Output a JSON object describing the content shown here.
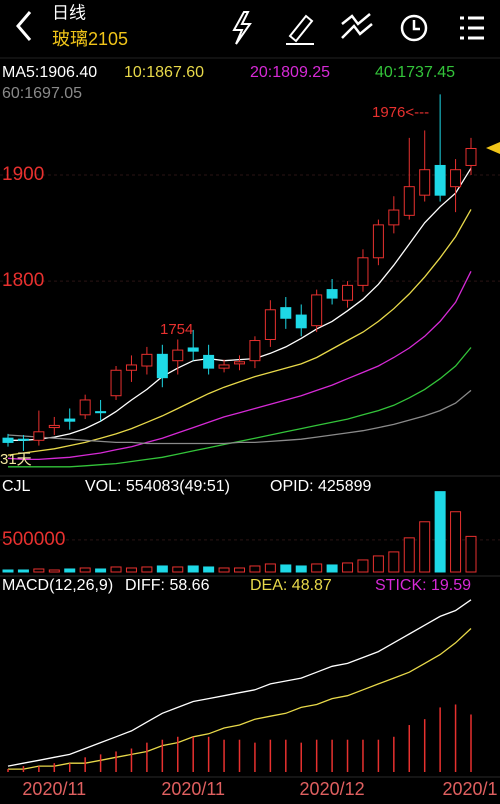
{
  "header": {
    "title": "日线",
    "symbol": "玻璃2105"
  },
  "chart_data": [
    {
      "type": "candlestick",
      "ylim": [
        1622,
        1982
      ],
      "yticks": [
        1800,
        1900
      ],
      "grid": true,
      "up_color": "#e8312f",
      "down_color": "#1ed9e6",
      "candles": {
        "open": [
          1652,
          1651,
          1650,
          1662,
          1670,
          1674,
          1677,
          1692,
          1716,
          1720,
          1731,
          1725,
          1737,
          1730,
          1718,
          1722,
          1725,
          1745,
          1775,
          1768,
          1758,
          1792,
          1782,
          1796,
          1822,
          1853,
          1862,
          1881,
          1909,
          1889,
          1909
        ],
        "high": [
          1656,
          1655,
          1678,
          1672,
          1680,
          1693,
          1688,
          1720,
          1730,
          1738,
          1740,
          1745,
          1754,
          1740,
          1726,
          1730,
          1748,
          1782,
          1785,
          1778,
          1792,
          1802,
          1800,
          1830,
          1858,
          1880,
          1935,
          1942,
          1976,
          1915,
          1935
        ],
        "low": [
          1644,
          1640,
          1645,
          1655,
          1660,
          1670,
          1668,
          1688,
          1705,
          1712,
          1700,
          1712,
          1725,
          1712,
          1714,
          1716,
          1718,
          1738,
          1755,
          1748,
          1752,
          1778,
          1775,
          1790,
          1815,
          1845,
          1858,
          1875,
          1875,
          1865,
          1900
        ],
        "close": [
          1648,
          1650,
          1658,
          1664,
          1668,
          1688,
          1676,
          1716,
          1721,
          1731,
          1709,
          1735,
          1734,
          1718,
          1721,
          1724,
          1744,
          1773,
          1765,
          1756,
          1787,
          1784,
          1796,
          1822,
          1853,
          1867,
          1889,
          1905,
          1881,
          1905,
          1925
        ]
      },
      "series": [
        {
          "name": "MA5:1906.40",
          "color": "#ffffff",
          "values": [
            1650,
            1650,
            1651,
            1653,
            1656,
            1661,
            1668,
            1677,
            1688,
            1698,
            1710,
            1718,
            1725,
            1727,
            1725,
            1726,
            1727,
            1732,
            1738,
            1746,
            1755,
            1762,
            1772,
            1783,
            1797,
            1815,
            1835,
            1855,
            1870,
            1883,
            1906.4
          ]
        },
        {
          "name": "10:1867.60",
          "color": "#e8d94a",
          "values": [
            1636,
            1638,
            1640,
            1642,
            1645,
            1648,
            1652,
            1656,
            1661,
            1667,
            1673,
            1680,
            1687,
            1694,
            1700,
            1705,
            1710,
            1714,
            1718,
            1722,
            1728,
            1736,
            1744,
            1752,
            1762,
            1774,
            1788,
            1804,
            1822,
            1842,
            1867.6
          ]
        },
        {
          "name": "20:1809.25",
          "color": "#d62ad6",
          "values": [
            1633,
            1632,
            1632,
            1633,
            1634,
            1636,
            1638,
            1641,
            1644,
            1648,
            1652,
            1657,
            1662,
            1667,
            1672,
            1676,
            1680,
            1684,
            1688,
            1692,
            1697,
            1702,
            1708,
            1714,
            1720,
            1728,
            1737,
            1748,
            1762,
            1780,
            1809.25
          ]
        },
        {
          "name": "40:1737.45",
          "color": "#33c43a",
          "values": [
            1625,
            1625,
            1625,
            1625,
            1625,
            1626,
            1627,
            1628,
            1630,
            1632,
            1634,
            1637,
            1640,
            1643,
            1646,
            1649,
            1652,
            1655,
            1658,
            1661,
            1664,
            1667,
            1670,
            1674,
            1678,
            1683,
            1690,
            1698,
            1708,
            1720,
            1737.45
          ]
        },
        {
          "name": "60:1697.05",
          "color": "#8a8a8a",
          "values": [
            1655,
            1654,
            1653,
            1652,
            1651,
            1650,
            1649,
            1648,
            1648,
            1647,
            1647,
            1647,
            1647,
            1647,
            1647,
            1648,
            1648,
            1649,
            1650,
            1651,
            1653,
            1655,
            1657,
            1659,
            1662,
            1665,
            1669,
            1673,
            1678,
            1685,
            1697.05
          ]
        }
      ],
      "annotations": [
        "1976<---",
        "1754",
        "31天"
      ]
    },
    {
      "type": "bar",
      "title": "CJL",
      "ylim": [
        0,
        1400000
      ],
      "yticks": [
        500000
      ],
      "grid": true,
      "series": [
        {
          "name": "VOL: 554083(49:51)",
          "values": [
            31250,
            31250,
            46875,
            31250,
            46875,
            62500,
            46875,
            78125,
            62500,
            78125,
            93750,
            78125,
            93750,
            78125,
            62500,
            62500,
            93750,
            125000,
            109375,
            93750,
            125000,
            109375,
            140625,
            187500,
            250000,
            312500,
            531250,
            781250,
            1250000,
            937500,
            554083
          ]
        }
      ],
      "annotations": [
        "OPID: 425899"
      ]
    },
    {
      "type": "macd",
      "title": "MACD(12,26,9)",
      "ylim": [
        0,
        62
      ],
      "categories": [
        null,
        null,
        null,
        "2020/11",
        null,
        null,
        null,
        null,
        null,
        null,
        null,
        null,
        "2020/11",
        null,
        null,
        null,
        null,
        null,
        null,
        null,
        null,
        "2020/12",
        null,
        null,
        null,
        null,
        null,
        null,
        null,
        null,
        "2020/1"
      ],
      "series": [
        {
          "name": "DIFF: 58.66",
          "color": "#ffffff",
          "values": [
            2,
            3,
            4,
            5,
            6,
            8,
            10,
            12,
            14,
            17,
            20,
            22,
            24,
            25,
            26,
            27,
            28,
            30,
            31,
            32,
            34,
            36,
            37,
            39,
            41,
            44,
            47,
            50,
            53,
            55,
            58.66
          ]
        },
        {
          "name": "DEA: 48.87",
          "color": "#e8d94a",
          "values": [
            1,
            1,
            2,
            2,
            3,
            3,
            4,
            5,
            6,
            7,
            9,
            10,
            12,
            13,
            15,
            16,
            18,
            19,
            20,
            22,
            23,
            25,
            26,
            28,
            30,
            32,
            34,
            37,
            40,
            44,
            48.87
          ]
        },
        {
          "name": "STICK: 19.59",
          "color": "#e8312f",
          "label_color": "#d62ad6",
          "values": [
            1,
            2,
            2,
            3,
            3,
            5,
            6,
            7,
            8,
            10,
            11,
            12,
            12,
            12,
            11,
            11,
            10,
            11,
            11,
            10,
            11,
            11,
            11,
            11,
            11,
            12,
            16,
            18,
            22,
            23,
            19.59
          ]
        }
      ]
    }
  ]
}
